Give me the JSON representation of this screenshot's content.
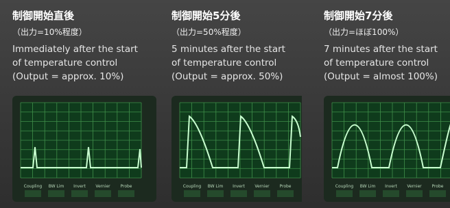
{
  "panels": [
    {
      "title": "制御開始直後",
      "subtitle": "（出力=10%程度）",
      "caption": [
        "Immediately after the start",
        "of temperature control",
        "(Output = approx. 10%)"
      ],
      "softkeys": [
        "Coupling",
        "BW Lim",
        "Invert",
        "Vernier",
        "Probe"
      ]
    },
    {
      "title": "制御開始5分後",
      "subtitle": "（出力=50%程度）",
      "caption": [
        "5 minutes after the start",
        "of temperature control",
        "(Output = approx. 50%)"
      ],
      "softkeys": [
        "Coupling",
        "BW Lim",
        "Invert",
        "Vernier",
        "Probe"
      ]
    },
    {
      "title": "制御開始7分後",
      "subtitle": "（出力=ほぼ100%）",
      "caption": [
        "7 minutes after the start",
        "of temperature control",
        "(Output = almost 100%)"
      ],
      "softkeys": [
        "Coupling",
        "BW Lim",
        "Invert",
        "Vernier",
        "Probe"
      ]
    }
  ]
}
